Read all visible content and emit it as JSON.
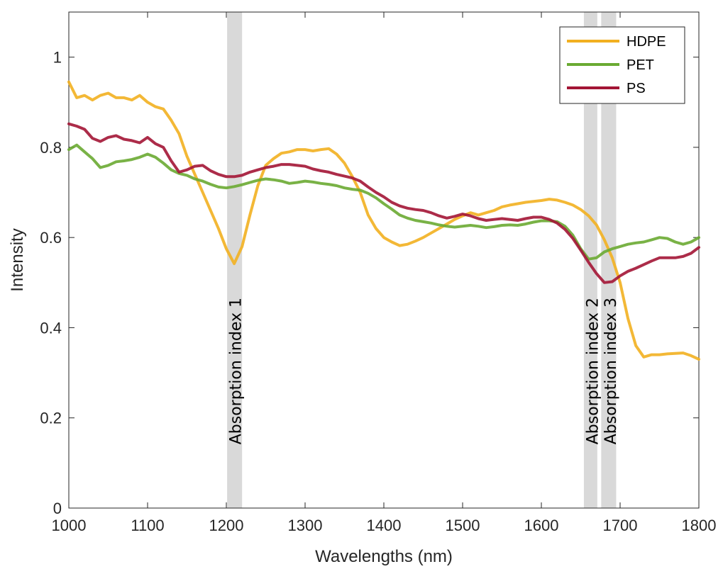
{
  "chart_data": {
    "type": "line",
    "xlabel": "Wavelengths (nm)",
    "ylabel": "Intensity",
    "xlim": [
      1000,
      1800
    ],
    "ylim": [
      0,
      1.1
    ],
    "xticks": [
      "1000",
      "1100",
      "1200",
      "1300",
      "1400",
      "1500",
      "1600",
      "1700",
      "1800"
    ],
    "yticks": [
      "0",
      "0.2",
      "0.4",
      "0.6",
      "0.8",
      "1"
    ],
    "grid": false,
    "legend": "top-right",
    "series": [
      {
        "name": "HDPE",
        "color": "#f2b020",
        "x": [
          1000,
          1010,
          1020,
          1030,
          1040,
          1050,
          1060,
          1070,
          1080,
          1090,
          1100,
          1110,
          1120,
          1130,
          1140,
          1150,
          1160,
          1170,
          1180,
          1190,
          1200,
          1210,
          1220,
          1230,
          1240,
          1250,
          1260,
          1270,
          1280,
          1290,
          1300,
          1310,
          1320,
          1330,
          1340,
          1350,
          1360,
          1370,
          1380,
          1390,
          1400,
          1410,
          1420,
          1430,
          1440,
          1450,
          1460,
          1470,
          1480,
          1490,
          1500,
          1510,
          1520,
          1530,
          1540,
          1550,
          1560,
          1570,
          1580,
          1590,
          1600,
          1610,
          1620,
          1630,
          1640,
          1650,
          1660,
          1670,
          1680,
          1690,
          1700,
          1710,
          1720,
          1730,
          1740,
          1750,
          1760,
          1770,
          1780,
          1790,
          1800
        ],
        "y": [
          0.945,
          0.91,
          0.915,
          0.905,
          0.915,
          0.92,
          0.91,
          0.91,
          0.905,
          0.915,
          0.9,
          0.89,
          0.885,
          0.86,
          0.83,
          0.78,
          0.74,
          0.7,
          0.66,
          0.62,
          0.575,
          0.542,
          0.58,
          0.65,
          0.715,
          0.76,
          0.775,
          0.787,
          0.79,
          0.795,
          0.795,
          0.792,
          0.795,
          0.797,
          0.785,
          0.765,
          0.735,
          0.7,
          0.65,
          0.62,
          0.6,
          0.59,
          0.582,
          0.585,
          0.592,
          0.6,
          0.61,
          0.62,
          0.63,
          0.64,
          0.648,
          0.655,
          0.65,
          0.655,
          0.66,
          0.668,
          0.672,
          0.675,
          0.678,
          0.68,
          0.682,
          0.685,
          0.683,
          0.678,
          0.672,
          0.662,
          0.648,
          0.628,
          0.595,
          0.555,
          0.5,
          0.42,
          0.36,
          0.335,
          0.34,
          0.34,
          0.342,
          0.343,
          0.344,
          0.338,
          0.33
        ]
      },
      {
        "name": "PET",
        "color": "#6aaa32",
        "x": [
          1000,
          1010,
          1020,
          1030,
          1040,
          1050,
          1060,
          1070,
          1080,
          1090,
          1100,
          1110,
          1120,
          1130,
          1140,
          1150,
          1160,
          1170,
          1180,
          1190,
          1200,
          1210,
          1220,
          1230,
          1240,
          1250,
          1260,
          1270,
          1280,
          1290,
          1300,
          1310,
          1320,
          1330,
          1340,
          1350,
          1360,
          1370,
          1380,
          1390,
          1400,
          1410,
          1420,
          1430,
          1440,
          1450,
          1460,
          1470,
          1480,
          1490,
          1500,
          1510,
          1520,
          1530,
          1540,
          1550,
          1560,
          1570,
          1580,
          1590,
          1600,
          1610,
          1620,
          1630,
          1640,
          1650,
          1660,
          1670,
          1680,
          1690,
          1700,
          1710,
          1720,
          1730,
          1740,
          1750,
          1760,
          1770,
          1780,
          1790,
          1800
        ],
        "y": [
          0.795,
          0.805,
          0.79,
          0.775,
          0.755,
          0.76,
          0.768,
          0.77,
          0.773,
          0.778,
          0.785,
          0.778,
          0.765,
          0.75,
          0.742,
          0.738,
          0.73,
          0.725,
          0.718,
          0.712,
          0.71,
          0.713,
          0.717,
          0.722,
          0.727,
          0.73,
          0.728,
          0.725,
          0.72,
          0.722,
          0.725,
          0.723,
          0.72,
          0.718,
          0.715,
          0.71,
          0.707,
          0.705,
          0.698,
          0.688,
          0.675,
          0.663,
          0.65,
          0.643,
          0.638,
          0.635,
          0.632,
          0.628,
          0.625,
          0.623,
          0.625,
          0.627,
          0.625,
          0.622,
          0.624,
          0.627,
          0.628,
          0.627,
          0.63,
          0.634,
          0.637,
          0.637,
          0.635,
          0.625,
          0.605,
          0.575,
          0.552,
          0.555,
          0.568,
          0.575,
          0.58,
          0.585,
          0.588,
          0.59,
          0.595,
          0.6,
          0.598,
          0.59,
          0.585,
          0.59,
          0.6
        ]
      },
      {
        "name": "PS",
        "color": "#a31535",
        "x": [
          1000,
          1010,
          1020,
          1030,
          1040,
          1050,
          1060,
          1070,
          1080,
          1090,
          1100,
          1110,
          1120,
          1130,
          1140,
          1150,
          1160,
          1170,
          1180,
          1190,
          1200,
          1210,
          1220,
          1230,
          1240,
          1250,
          1260,
          1270,
          1280,
          1290,
          1300,
          1310,
          1320,
          1330,
          1340,
          1350,
          1360,
          1370,
          1380,
          1390,
          1400,
          1410,
          1420,
          1430,
          1440,
          1450,
          1460,
          1470,
          1480,
          1490,
          1500,
          1510,
          1520,
          1530,
          1540,
          1550,
          1560,
          1570,
          1580,
          1590,
          1600,
          1610,
          1620,
          1630,
          1640,
          1650,
          1660,
          1670,
          1680,
          1690,
          1700,
          1710,
          1720,
          1730,
          1740,
          1750,
          1760,
          1770,
          1780,
          1790,
          1800
        ],
        "y": [
          0.852,
          0.847,
          0.84,
          0.82,
          0.813,
          0.822,
          0.826,
          0.818,
          0.815,
          0.81,
          0.822,
          0.808,
          0.8,
          0.77,
          0.745,
          0.75,
          0.758,
          0.76,
          0.748,
          0.74,
          0.735,
          0.735,
          0.738,
          0.745,
          0.75,
          0.755,
          0.758,
          0.762,
          0.762,
          0.76,
          0.758,
          0.752,
          0.748,
          0.745,
          0.74,
          0.736,
          0.732,
          0.725,
          0.712,
          0.7,
          0.69,
          0.678,
          0.67,
          0.665,
          0.662,
          0.66,
          0.655,
          0.648,
          0.643,
          0.647,
          0.652,
          0.648,
          0.642,
          0.638,
          0.64,
          0.642,
          0.64,
          0.638,
          0.642,
          0.645,
          0.645,
          0.64,
          0.632,
          0.618,
          0.598,
          0.572,
          0.545,
          0.52,
          0.5,
          0.502,
          0.515,
          0.525,
          0.532,
          0.54,
          0.548,
          0.555,
          0.555,
          0.555,
          0.558,
          0.565,
          0.578
        ]
      }
    ],
    "bands": [
      {
        "label": "Absorption index 1",
        "x0": 1201,
        "x1": 1220,
        "label_x": 1213
      },
      {
        "label": "Absorption index 2",
        "x0": 1654,
        "x1": 1671,
        "label_x": 1666
      },
      {
        "label": "Absorption index 3",
        "x0": 1676,
        "x1": 1695,
        "label_x": 1689
      }
    ]
  }
}
